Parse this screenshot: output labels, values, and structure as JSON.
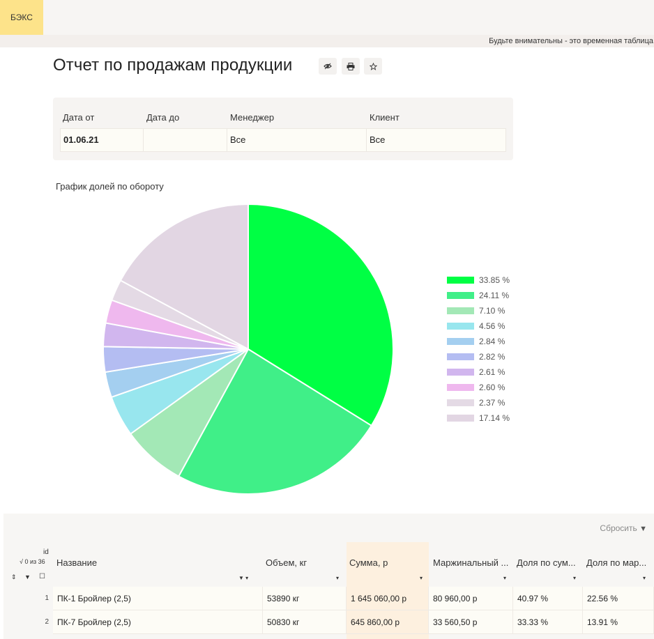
{
  "app": {
    "brand": "БЭКС",
    "warning": "Будьте внимательны - это временная таблица"
  },
  "report": {
    "title": "Отчет по продажам продукции",
    "actions": [
      {
        "name": "eye-icon",
        "glyph": "👁"
      },
      {
        "name": "print-icon",
        "glyph": "⎙"
      },
      {
        "name": "star-icon",
        "glyph": "☆"
      }
    ]
  },
  "filters": {
    "date_from_label": "Дата от",
    "date_to_label": "Дата до",
    "manager_label": "Менеджер",
    "client_label": "Клиент",
    "date_from": "01.06.21",
    "date_to": "",
    "manager": "Все",
    "client": "Все"
  },
  "chart_data": {
    "type": "pie",
    "title": "График долей по обороту",
    "values": [
      33.85,
      24.11,
      7.1,
      4.56,
      2.84,
      2.82,
      2.61,
      2.6,
      2.37,
      17.14
    ],
    "labels": [
      "33.85 %",
      "24.11 %",
      "7.10 %",
      "4.56 %",
      "2.84 %",
      "2.82 %",
      "2.61 %",
      "2.60 %",
      "2.37 %",
      "17.14 %"
    ],
    "colors": [
      "#00ff44",
      "#40ef88",
      "#a3e8b6",
      "#98e6ee",
      "#a4cff0",
      "#b4bdf2",
      "#d1b6ee",
      "#efb8ee",
      "#e4dae5",
      "#e2d6e3"
    ],
    "legend": "right"
  },
  "table": {
    "reset_label": "Сбросить",
    "id_label": "id",
    "count_label": "√ 0 из 36",
    "columns": [
      "Название",
      "Объем, кг",
      "Сумма, р",
      "Маржинальный ...",
      "Доля по сум...",
      "Доля по мар..."
    ],
    "rows": [
      {
        "num": "1",
        "name": "ПК-1 Бройлер (2,5)",
        "volume": "53890 кг",
        "sum": "1 645 060,00 р",
        "margin": "80 960,00 р",
        "share_sum": "40.97 %",
        "share_margin": "22.56 %"
      },
      {
        "num": "2",
        "name": "ПК-7 Бройлер (2,5)",
        "volume": "50830 кг",
        "sum": "645 860,00 р",
        "margin": "33 560,50 р",
        "share_sum": "33.33 %",
        "share_margin": "13.91 %"
      }
    ]
  }
}
